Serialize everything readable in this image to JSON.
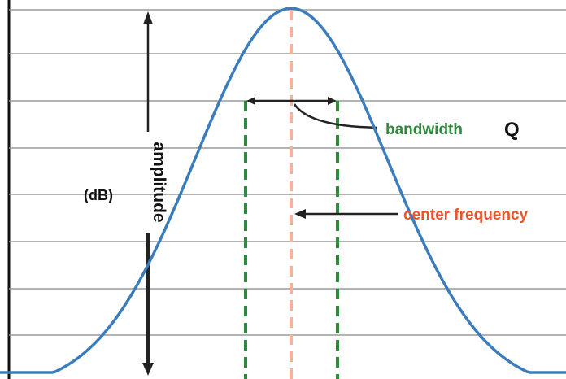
{
  "labels": {
    "amplitude": "amplitude",
    "unit": "(dB)",
    "bandwidth": "bandwidth",
    "q_symbol": "Q",
    "center_frequency": "center frequency"
  },
  "colors": {
    "curve": "#3b7dbc",
    "gridline": "#9a9a9a",
    "axis": "#111111",
    "bandwidth_marker": "#2e8b3e",
    "bandwidth_text": "#2e8b3e",
    "center_marker": "#f2b39a",
    "center_text": "#e8542a",
    "arrow": "#222222"
  }
}
